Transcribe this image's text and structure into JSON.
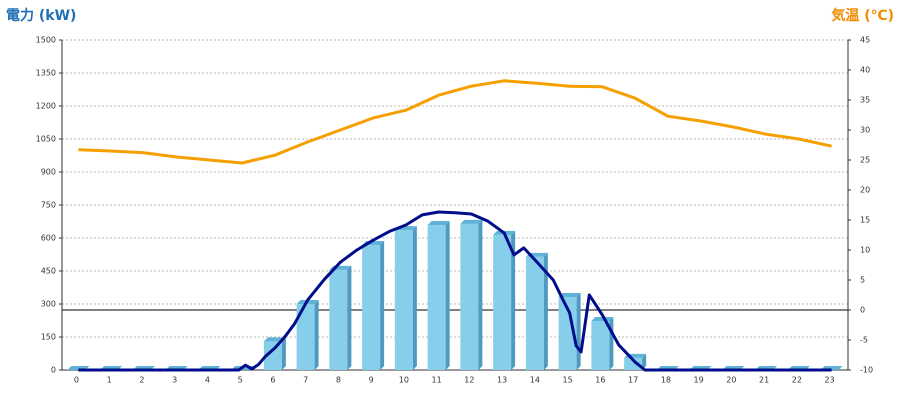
{
  "chart_data": {
    "type": "combo",
    "y_label": "電力 (kW)",
    "y2_label": "気温 (℃)",
    "categories": [
      "0",
      "1",
      "2",
      "3",
      "4",
      "5",
      "6",
      "7",
      "8",
      "9",
      "10",
      "11",
      "12",
      "13",
      "14",
      "15",
      "16",
      "17",
      "18",
      "19",
      "20",
      "21",
      "22",
      "23"
    ],
    "ylim": [
      0,
      1500
    ],
    "yticks": [
      0,
      150,
      300,
      450,
      600,
      750,
      900,
      1050,
      1200,
      1350,
      1500
    ],
    "y2lim": [
      -10,
      45
    ],
    "y2ticks": [
      -10,
      -5,
      0,
      5,
      10,
      15,
      20,
      25,
      30,
      35,
      40,
      45
    ],
    "grid": true,
    "series": [
      {
        "type": "bar",
        "color": "#87ceeb",
        "values": [
          0,
          0,
          0,
          0,
          0,
          0,
          130,
          300,
          455,
          568,
          636,
          659,
          664,
          614,
          514,
          332,
          223,
          55,
          0,
          0,
          0,
          0,
          0,
          0
        ]
      },
      {
        "type": "line",
        "color": "#000e8c",
        "x": [
          0,
          4.9,
          5.1,
          5.3,
          5.5,
          5.7,
          6,
          6.3,
          6.6,
          7,
          7.5,
          8,
          8.5,
          9,
          9.5,
          10,
          10.5,
          11,
          11.5,
          12,
          12.5,
          13,
          13.3,
          13.6,
          14,
          14.5,
          14.8,
          15,
          15.2,
          15.35,
          15.6,
          16,
          16.5,
          17,
          17.3,
          23
        ],
        "values": [
          0,
          0,
          22,
          5,
          25,
          60,
          100,
          150,
          210,
          318,
          410,
          490,
          545,
          590,
          630,
          659,
          705,
          718,
          715,
          709,
          677,
          623,
          523,
          555,
          491,
          409,
          318,
          260,
          110,
          82,
          341,
          250,
          114,
          36,
          0,
          0
        ]
      },
      {
        "type": "line",
        "axis": "y2",
        "color": "#f5a000",
        "values": [
          26.7,
          26.5,
          26.2,
          25.5,
          25,
          24.5,
          25.8,
          28,
          30,
          32,
          33.3,
          35.8,
          37.3,
          38.2,
          37.8,
          37.3,
          37.2,
          35.3,
          32.3,
          31.5,
          30.5,
          29.3,
          28.5,
          27.3
        ]
      }
    ]
  }
}
